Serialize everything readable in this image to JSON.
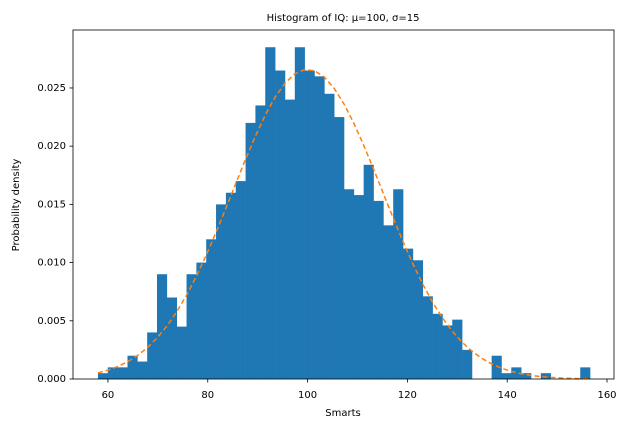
{
  "chart_data": {
    "type": "histogram",
    "title": "Histogram of IQ: μ=100, σ=15",
    "xlabel": "Smarts",
    "ylabel": "Probability density",
    "color": "#1f77b4",
    "bins": [
      58.0,
      59.97,
      61.94,
      63.92,
      65.89,
      67.86,
      69.83,
      71.8,
      73.78,
      75.75,
      77.72,
      79.69,
      81.66,
      83.64,
      85.61,
      87.58,
      89.55,
      91.52,
      93.5,
      95.47,
      97.44,
      99.41,
      101.38,
      103.36,
      105.33,
      107.3,
      109.27,
      111.24,
      113.22,
      115.19,
      117.16,
      119.13,
      121.1,
      123.08,
      125.05,
      127.02,
      128.99,
      130.96,
      132.94,
      134.91,
      136.88,
      138.85,
      140.82,
      142.8,
      144.77,
      146.74,
      148.71,
      150.68,
      152.66,
      154.63,
      156.6
    ],
    "values": [
      0.0005,
      0.001,
      0.001,
      0.002,
      0.0015,
      0.004,
      0.009,
      0.007,
      0.0045,
      0.009,
      0.01,
      0.012,
      0.015,
      0.016,
      0.017,
      0.022,
      0.0235,
      0.0285,
      0.0265,
      0.024,
      0.0285,
      0.0265,
      0.026,
      0.0245,
      0.0225,
      0.0163,
      0.0158,
      0.0184,
      0.0153,
      0.0132,
      0.0163,
      0.0112,
      0.0102,
      0.0071,
      0.0056,
      0.0046,
      0.0051,
      0.0025,
      0,
      0,
      0.002,
      0.0005,
      0.001,
      0.0005,
      0,
      0.0005,
      0,
      0,
      0,
      0.001
    ],
    "line": {
      "color": "#ff7f0e",
      "dashed": true,
      "values": [
        0.000528,
        0.000756,
        0.001064,
        0.001474,
        0.002005,
        0.002678,
        0.003519,
        0.004543,
        0.005771,
        0.007197,
        0.008827,
        0.010636,
        0.012596,
        0.01467,
        0.016787,
        0.018878,
        0.020864,
        0.022668,
        0.024213,
        0.02541,
        0.02621,
        0.026576,
        0.026484,
        0.025937,
        0.024968,
        0.023625,
        0.021971,
        0.020085,
        0.018037,
        0.015926,
        0.013825,
        0.011793,
        0.009888,
        0.008141,
        0.006596,
        0.00525,
        0.004109,
        0.00316,
        0.002386,
        0.001774,
        0.001295,
        0.000929,
        0.000656,
        0.000454,
        0.000309,
        0.000207,
        0.000136,
        8.83e-05,
        5.61e-05,
        3.51e-05,
        2.15e-05
      ]
    },
    "xlim": [
      53.0,
      161.4
    ],
    "ylim": [
      0,
      0.02998
    ],
    "xticks": [
      60,
      80,
      100,
      120,
      140,
      160
    ],
    "yticks": [
      {
        "value": 0,
        "label": "0.000"
      },
      {
        "value": 0.005,
        "label": "0.005"
      },
      {
        "value": 0.01,
        "label": "0.010"
      },
      {
        "value": 0.015,
        "label": "0.015"
      },
      {
        "value": 0.02,
        "label": "0.020"
      },
      {
        "value": 0.025,
        "label": "0.025"
      }
    ]
  }
}
